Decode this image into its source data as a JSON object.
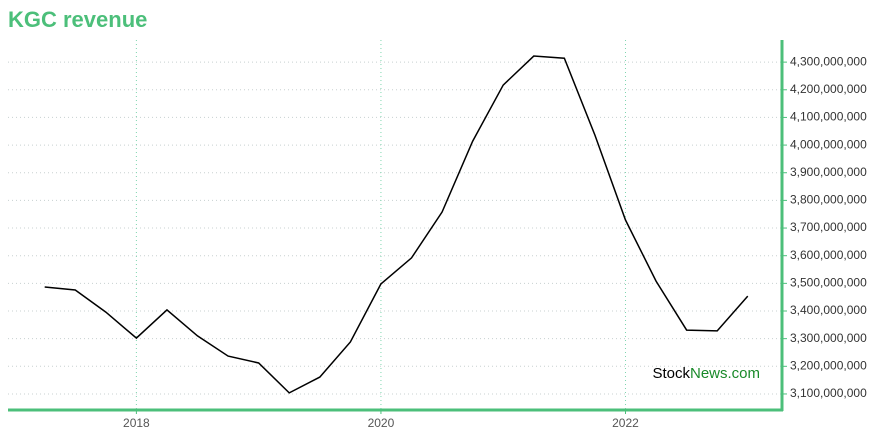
{
  "chart_data": {
    "type": "line",
    "title": "KGC revenue",
    "x": [
      2017.25,
      2017.5,
      2017.75,
      2018,
      2018.25,
      2018.5,
      2018.75,
      2019,
      2019.25,
      2019.5,
      2019.75,
      2020,
      2020.25,
      2020.5,
      2020.75,
      2021,
      2021.25,
      2021.5,
      2021.75,
      2022,
      2022.25,
      2022.5,
      2022.75,
      2023
    ],
    "series": [
      {
        "name": "KGC revenue",
        "color": "#000000",
        "values": [
          3487000000,
          3476000000,
          3396000000,
          3302000000,
          3404000000,
          3310000000,
          3237000000,
          3212000000,
          3104000000,
          3161000000,
          3288000000,
          3498000000,
          3592000000,
          3758000000,
          4014000000,
          4217000000,
          4322000000,
          4314000000,
          4036000000,
          3729000000,
          3508000000,
          3331000000,
          3328000000,
          3454000000
        ]
      }
    ],
    "xlim": [
      2016.95,
      2023.28
    ],
    "xticks": [
      2018,
      2020,
      2022
    ],
    "ylim": [
      3042000000,
      4380000000
    ],
    "yticks": [
      {
        "value": 3100000000,
        "label": "3,100,000,000"
      },
      {
        "value": 3200000000,
        "label": "3,200,000,000"
      },
      {
        "value": 3300000000,
        "label": "3,300,000,000"
      },
      {
        "value": 3400000000,
        "label": "3,400,000,000"
      },
      {
        "value": 3500000000,
        "label": "3,500,000,000"
      },
      {
        "value": 3600000000,
        "label": "3,600,000,000"
      },
      {
        "value": 3700000000,
        "label": "3,700,000,000"
      },
      {
        "value": 3800000000,
        "label": "3,800,000,000"
      },
      {
        "value": 3900000000,
        "label": "3,900,000,000"
      },
      {
        "value": 4000000000,
        "label": "4,000,000,000"
      },
      {
        "value": 4100000000,
        "label": "4,100,000,000"
      },
      {
        "value": 4200000000,
        "label": "4,200,000,000"
      },
      {
        "value": 4300000000,
        "label": "4,300,000,000"
      }
    ],
    "grid": true,
    "watermark": {
      "first": "Stock",
      "second": "News.com"
    }
  }
}
